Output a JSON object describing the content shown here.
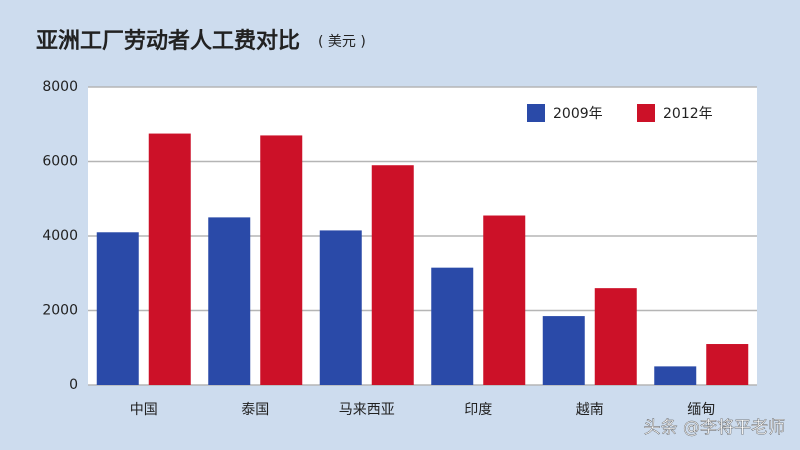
{
  "chart_data": {
    "type": "bar",
    "title": "亚洲工厂劳动者人工费对比",
    "subtitle": "( 美元 )",
    "categories": [
      "中国",
      "泰国",
      "马来西亚",
      "印度",
      "越南",
      "缅甸"
    ],
    "series": [
      {
        "name": "2009年",
        "color": "#2a4aa8",
        "values": [
          4100,
          4500,
          4150,
          3150,
          1850,
          500
        ]
      },
      {
        "name": "2012年",
        "color": "#cc1128",
        "values": [
          6750,
          6700,
          5900,
          4550,
          2600,
          1100
        ]
      }
    ],
    "ylim": [
      0,
      8000
    ],
    "yticks": [
      0,
      2000,
      4000,
      6000,
      8000
    ],
    "grid": true,
    "legend": "top-right",
    "watermark": "头条 @李将平老师"
  }
}
